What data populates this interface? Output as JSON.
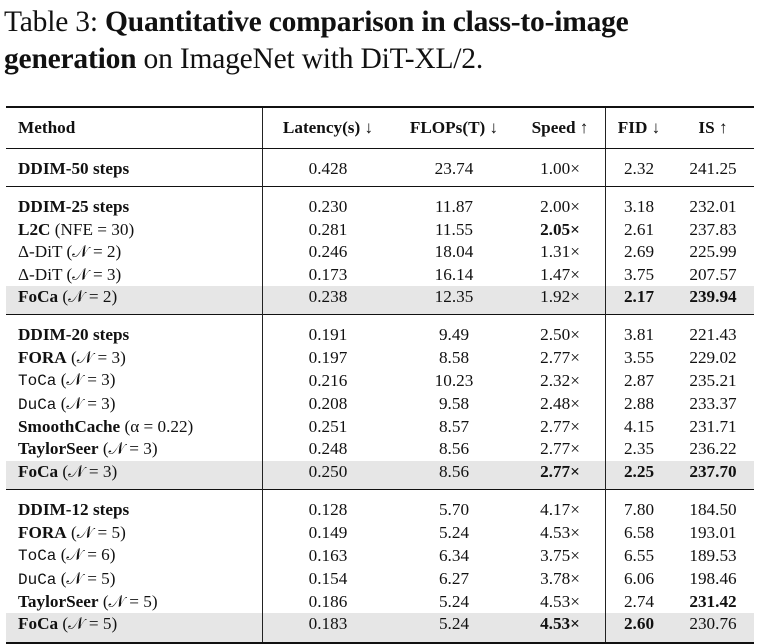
{
  "caption": {
    "label": "Table 3: ",
    "bold": "Quantitative comparison in class-to-image generation",
    "rest": " on ImageNet with DiT-XL/2."
  },
  "headers": [
    "Method",
    "Latency(s) ↓",
    "FLOPs(T) ↓",
    "Speed ↑",
    "FID ↓",
    "IS ↑"
  ],
  "groups": [
    [
      {
        "name": "DDIM-50 steps",
        "style": "bold",
        "param": "",
        "latency": "0.428",
        "flops": "23.74",
        "speed": "1.00×",
        "fid": "2.32",
        "is": "241.25",
        "highlight": false,
        "bold": []
      }
    ],
    [
      {
        "name": "DDIM-25 steps",
        "style": "bold",
        "param": "",
        "latency": "0.230",
        "flops": "11.87",
        "speed": "2.00×",
        "fid": "3.18",
        "is": "232.01",
        "highlight": false,
        "bold": []
      },
      {
        "name": "L2C",
        "style": "bold",
        "param": " (NFE = 30)",
        "latency": "0.281",
        "flops": "11.55",
        "speed": "2.05×",
        "fid": "2.61",
        "is": "237.83",
        "highlight": false,
        "bold": [
          "speed"
        ]
      },
      {
        "name": "Δ-DiT",
        "style": "normal",
        "param": " (𝒩 = 2)",
        "latency": "0.246",
        "flops": "18.04",
        "speed": "1.31×",
        "fid": "2.69",
        "is": "225.99",
        "highlight": false,
        "bold": []
      },
      {
        "name": "Δ-DiT",
        "style": "normal",
        "param": " (𝒩 = 3)",
        "latency": "0.173",
        "flops": "16.14",
        "speed": "1.47×",
        "fid": "3.75",
        "is": "207.57",
        "highlight": false,
        "bold": []
      },
      {
        "name": "FoCa",
        "style": "bold",
        "param": " (𝒩 = 2)",
        "latency": "0.238",
        "flops": "12.35",
        "speed": "1.92×",
        "fid": "2.17",
        "is": "239.94",
        "highlight": true,
        "bold": [
          "fid",
          "is"
        ]
      }
    ],
    [
      {
        "name": "DDIM-20 steps",
        "style": "bold",
        "param": "",
        "latency": "0.191",
        "flops": "9.49",
        "speed": "2.50×",
        "fid": "3.81",
        "is": "221.43",
        "highlight": false,
        "bold": []
      },
      {
        "name": "FORA",
        "style": "bold",
        "param": " (𝒩 = 3)",
        "latency": "0.197",
        "flops": "8.58",
        "speed": "2.77×",
        "fid": "3.55",
        "is": "229.02",
        "highlight": false,
        "bold": []
      },
      {
        "name": "ToCa",
        "style": "mono",
        "param": " (𝒩 = 3)",
        "latency": "0.216",
        "flops": "10.23",
        "speed": "2.32×",
        "fid": "2.87",
        "is": "235.21",
        "highlight": false,
        "bold": []
      },
      {
        "name": "DuCa",
        "style": "mono",
        "param": " (𝒩 = 3)",
        "latency": "0.208",
        "flops": "9.58",
        "speed": "2.48×",
        "fid": "2.88",
        "is": "233.37",
        "highlight": false,
        "bold": []
      },
      {
        "name": "SmoothCache",
        "style": "bold",
        "param": " (α = 0.22)",
        "latency": "0.251",
        "flops": "8.57",
        "speed": "2.77×",
        "fid": "4.15",
        "is": "231.71",
        "highlight": false,
        "bold": []
      },
      {
        "name": "TaylorSeer",
        "style": "bold",
        "param": " (𝒩 = 3)",
        "latency": "0.248",
        "flops": "8.56",
        "speed": "2.77×",
        "fid": "2.35",
        "is": "236.22",
        "highlight": false,
        "bold": []
      },
      {
        "name": "FoCa",
        "style": "bold",
        "param": " (𝒩 = 3)",
        "latency": "0.250",
        "flops": "8.56",
        "speed": "2.77×",
        "fid": "2.25",
        "is": "237.70",
        "highlight": true,
        "bold": [
          "speed",
          "fid",
          "is"
        ]
      }
    ],
    [
      {
        "name": "DDIM-12 steps",
        "style": "bold",
        "param": "",
        "latency": "0.128",
        "flops": "5.70",
        "speed": "4.17×",
        "fid": "7.80",
        "is": "184.50",
        "highlight": false,
        "bold": []
      },
      {
        "name": "FORA",
        "style": "bold",
        "param": " (𝒩 = 5)",
        "latency": "0.149",
        "flops": "5.24",
        "speed": "4.53×",
        "fid": "6.58",
        "is": "193.01",
        "highlight": false,
        "bold": []
      },
      {
        "name": "ToCa",
        "style": "mono",
        "param": " (𝒩 = 6)",
        "latency": "0.163",
        "flops": "6.34",
        "speed": "3.75×",
        "fid": "6.55",
        "is": "189.53",
        "highlight": false,
        "bold": []
      },
      {
        "name": "DuCa",
        "style": "mono",
        "param": " (𝒩 = 5)",
        "latency": "0.154",
        "flops": "6.27",
        "speed": "3.78×",
        "fid": "6.06",
        "is": "198.46",
        "highlight": false,
        "bold": []
      },
      {
        "name": "TaylorSeer",
        "style": "bold",
        "param": " (𝒩 = 5)",
        "latency": "0.186",
        "flops": "5.24",
        "speed": "4.53×",
        "fid": "2.74",
        "is": "231.42",
        "highlight": false,
        "bold": [
          "is"
        ]
      },
      {
        "name": "FoCa",
        "style": "bold",
        "param": " (𝒩 = 5)",
        "latency": "0.183",
        "flops": "5.24",
        "speed": "4.53×",
        "fid": "2.60",
        "is": "230.76",
        "highlight": true,
        "bold": [
          "speed",
          "fid"
        ]
      }
    ]
  ]
}
